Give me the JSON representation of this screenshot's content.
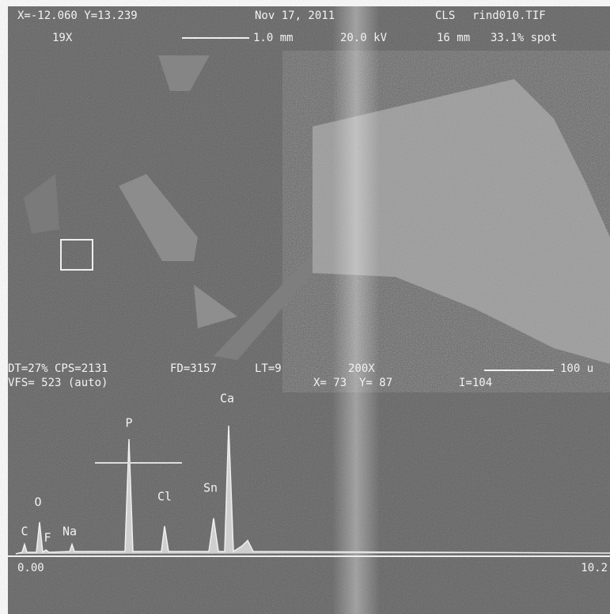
{
  "header": {
    "coords": "X=-12.060 Y=13.239",
    "date": "Nov 17, 2011",
    "org": "CLS",
    "file": "rind010.TIF",
    "mag": "19X",
    "scale": "1.0 mm",
    "voltage": "20.0 kV",
    "distance": "16 mm",
    "spot": "33.1% spot"
  },
  "info": {
    "dt_cps": "DT=27% CPS=2131",
    "fd": "FD=3157",
    "lt": "LT=9",
    "mag": "200X",
    "scale": "100 u",
    "vfs": "VFS= 523 (auto)",
    "x": "X= 73",
    "y": "Y= 87",
    "i": "I=104"
  },
  "peaks": [
    "C",
    "O",
    "F",
    "Na",
    "P",
    "Cl",
    "Sn",
    "Ca"
  ],
  "axis": {
    "start": "0.00",
    "end": "10.2"
  }
}
